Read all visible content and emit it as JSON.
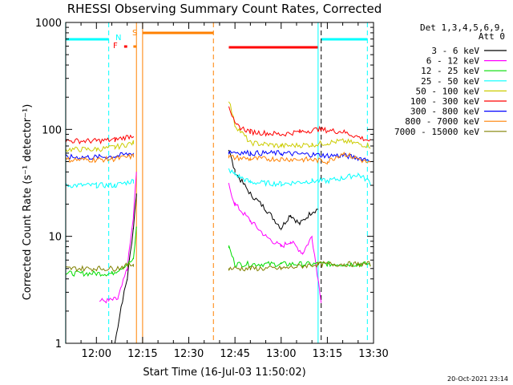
{
  "chart_data": {
    "type": "line",
    "title": "RHESSI Observing Summary Count Rates, Corrected",
    "xlabel": "Start Time (16-Jul-03 11:50:02)",
    "ylabel": "Corrected Count Rate (s⁻¹ detector⁻¹)",
    "yscale": "log",
    "xlim": [
      "11:50:02",
      "13:30:00"
    ],
    "ylim": [
      1,
      1000
    ],
    "x_ticks": [
      "12:00",
      "12:15",
      "12:30",
      "12:45",
      "13:00",
      "13:15",
      "13:30"
    ],
    "y_ticks": [
      "1",
      "10",
      "100",
      "1000"
    ],
    "legend_header": [
      "Det 1,3,4,5,6,9,",
      "Att 0"
    ],
    "legend_position": "top-right",
    "series": [
      {
        "name": "3 - 6 keV",
        "color": "#000000",
        "x": [
          "12:06",
          "12:08",
          "12:10",
          "12:12",
          "12:13",
          "12:43",
          "12:45",
          "12:50",
          "12:55",
          "13:00",
          "13:03",
          "13:06",
          "13:10",
          "13:12"
        ],
        "y": [
          1,
          2.2,
          4,
          12,
          25,
          65,
          40,
          25,
          18,
          12,
          16,
          13,
          17,
          18
        ]
      },
      {
        "name": "6 - 12 keV",
        "color": "#ff00ff",
        "x": [
          "12:01",
          "12:04",
          "12:07",
          "12:10",
          "12:12",
          "12:13",
          "12:43",
          "12:45",
          "12:50",
          "12:55",
          "13:00",
          "13:03",
          "13:07",
          "13:10",
          "13:13"
        ],
        "y": [
          2.5,
          2.5,
          2.6,
          5,
          15,
          40,
          30,
          20,
          14,
          10,
          8,
          9,
          7,
          10,
          2.5
        ]
      },
      {
        "name": "12 - 25 keV",
        "color": "#00dd00",
        "x": [
          "11:50",
          "12:05",
          "12:12",
          "12:13",
          "12:43",
          "12:45",
          "13:00",
          "13:12",
          "13:15",
          "13:25",
          "13:29"
        ],
        "y": [
          4.5,
          4.5,
          6,
          12,
          8,
          5.5,
          5.5,
          5.5,
          5.5,
          5.5,
          5.5
        ]
      },
      {
        "name": "25 - 50 keV",
        "color": "#00ffff",
        "x": [
          "11:50",
          "12:00",
          "12:06",
          "12:12",
          "12:43",
          "12:45",
          "12:50",
          "13:00",
          "13:10",
          "13:15",
          "13:20",
          "13:25",
          "13:29"
        ],
        "y": [
          30,
          30,
          30,
          33,
          42,
          38,
          32,
          31,
          33,
          33,
          35,
          38,
          32
        ]
      },
      {
        "name": "50 - 100 keV",
        "color": "#cccc00",
        "x": [
          "11:50",
          "12:00",
          "12:06",
          "12:12",
          "12:43",
          "12:45",
          "12:50",
          "13:00",
          "13:10",
          "13:15",
          "13:20",
          "13:29"
        ],
        "y": [
          65,
          65,
          68,
          75,
          190,
          110,
          75,
          70,
          72,
          75,
          78,
          70
        ]
      },
      {
        "name": "100 - 300 keV",
        "color": "#ff0000",
        "x": [
          "11:50",
          "12:00",
          "12:06",
          "12:12",
          "12:43",
          "12:45",
          "12:50",
          "13:00",
          "13:06",
          "13:12",
          "13:20",
          "13:29"
        ],
        "y": [
          78,
          78,
          80,
          88,
          170,
          110,
          95,
          90,
          95,
          100,
          95,
          78
        ]
      },
      {
        "name": "300 - 800 keV",
        "color": "#0000ff",
        "x": [
          "11:50",
          "12:00",
          "12:06",
          "12:12",
          "12:43",
          "12:50",
          "13:00",
          "13:10",
          "13:15",
          "13:20",
          "13:29"
        ],
        "y": [
          55,
          55,
          56,
          60,
          62,
          60,
          60,
          58,
          57,
          57,
          52
        ]
      },
      {
        "name": "800 - 7000 keV",
        "color": "#ff8000",
        "x": [
          "11:50",
          "12:00",
          "12:06",
          "12:12",
          "12:43",
          "12:50",
          "13:00",
          "13:10",
          "13:15",
          "13:20",
          "13:29"
        ],
        "y": [
          52,
          52,
          53,
          56,
          55,
          53,
          53,
          52,
          50,
          60,
          48
        ]
      },
      {
        "name": "7000 - 15000 keV",
        "color": "#808000",
        "x": [
          "11:50",
          "12:00",
          "12:06",
          "12:12",
          "12:43",
          "12:50",
          "13:00",
          "13:12",
          "13:15",
          "13:25",
          "13:29"
        ],
        "y": [
          5,
          5,
          5,
          5.5,
          5,
          5,
          5,
          5.5,
          5.5,
          5.5,
          5.5
        ]
      }
    ],
    "flags": [
      {
        "label": "N",
        "color": "#00ffff"
      },
      {
        "label": "F",
        "color": "#ff0000"
      },
      {
        "label": "S",
        "color": "#ff8000"
      }
    ],
    "state_bars": [
      {
        "color": "#00ffff",
        "from": "11:50",
        "to": "12:04"
      },
      {
        "color": "#ff0000",
        "from": "12:09",
        "to": "12:10"
      },
      {
        "color": "#ff8000",
        "from": "12:12",
        "to": "12:13"
      },
      {
        "color": "#ff8000",
        "from": "12:15",
        "to": "12:38"
      },
      {
        "color": "#ff0000",
        "from": "12:43",
        "to": "13:12"
      },
      {
        "color": "#00ffff",
        "from": "13:13",
        "to": "13:28"
      }
    ],
    "vlines": [
      {
        "t": "11:50",
        "color": "#00ffff",
        "style": "solid"
      },
      {
        "t": "12:04",
        "color": "#00ffff",
        "style": "dashed"
      },
      {
        "t": "12:13",
        "color": "#ff8000",
        "style": "solid"
      },
      {
        "t": "12:15",
        "color": "#ff8000",
        "style": "solid"
      },
      {
        "t": "12:38",
        "color": "#ff8000",
        "style": "dashed"
      },
      {
        "t": "13:12",
        "color": "#00ffff",
        "style": "solid"
      },
      {
        "t": "13:13",
        "color": "#000000",
        "style": "dashed"
      },
      {
        "t": "13:28",
        "color": "#00ffff",
        "style": "dashed"
      }
    ],
    "grid": false
  },
  "footer": {
    "timestamp": "20-Oct-2021 23:14"
  }
}
